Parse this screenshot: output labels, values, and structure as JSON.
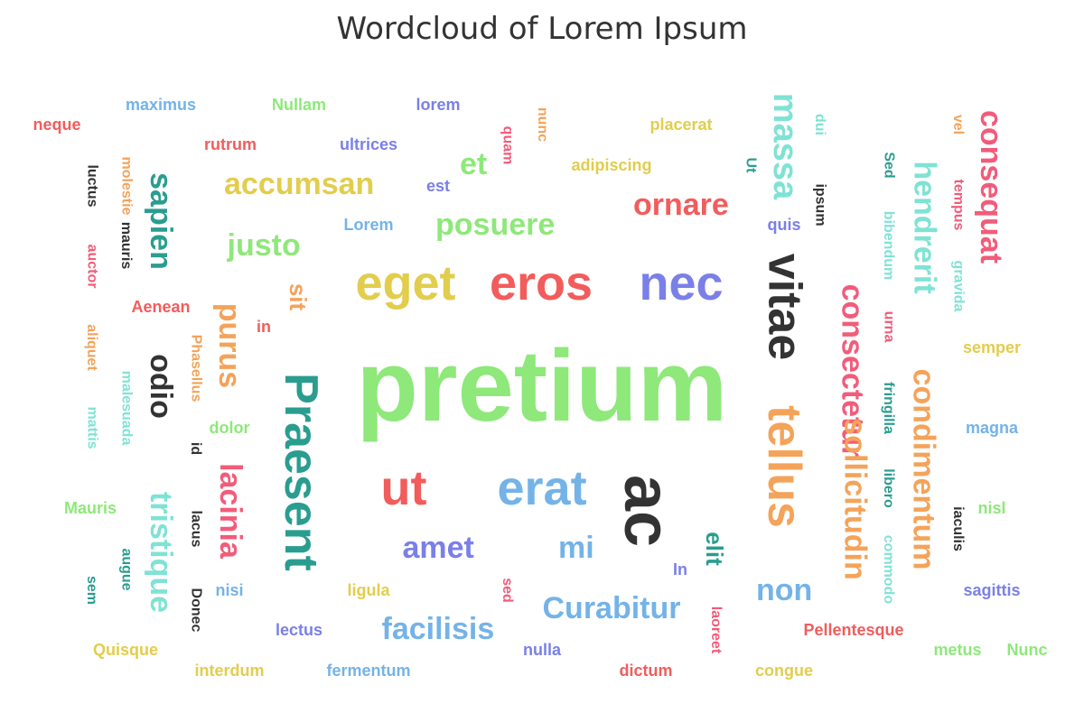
{
  "chart_data": {
    "type": "wordcloud",
    "title": "Wordcloud of Lorem Ipsum",
    "words": [
      {
        "text": "pretium",
        "weight": 100,
        "color": "#8ee87a"
      },
      {
        "text": "Praesent",
        "weight": 56,
        "color": "#2a9d8f"
      },
      {
        "text": "ac",
        "weight": 56,
        "color": "#333333"
      },
      {
        "text": "vitae",
        "weight": 52,
        "color": "#333333"
      },
      {
        "text": "tellus",
        "weight": 52,
        "color": "#f4a35a"
      },
      {
        "text": "eros",
        "weight": 52,
        "color": "#f25c5c"
      },
      {
        "text": "nec",
        "weight": 52,
        "color": "#7a80e8"
      },
      {
        "text": "eget",
        "weight": 52,
        "color": "#e2cd4d"
      },
      {
        "text": "ut",
        "weight": 52,
        "color": "#f25c5c"
      },
      {
        "text": "erat",
        "weight": 52,
        "color": "#74b3e8"
      },
      {
        "text": "massa",
        "weight": 40,
        "color": "#7fe3d4"
      },
      {
        "text": "consectetur",
        "weight": 38,
        "color": "#f25c7a"
      },
      {
        "text": "sollicitudin",
        "weight": 38,
        "color": "#f4a35a"
      },
      {
        "text": "consequat",
        "weight": 38,
        "color": "#f25c7a"
      },
      {
        "text": "hendrerit",
        "weight": 38,
        "color": "#7fe3d4"
      },
      {
        "text": "condimentum",
        "weight": 38,
        "color": "#f4a35a"
      },
      {
        "text": "odio",
        "weight": 38,
        "color": "#333333"
      },
      {
        "text": "tristique",
        "weight": 38,
        "color": "#7fe3d4"
      },
      {
        "text": "sapien",
        "weight": 38,
        "color": "#2a9d8f"
      },
      {
        "text": "lacinia",
        "weight": 38,
        "color": "#f25c7a"
      },
      {
        "text": "purus",
        "weight": 38,
        "color": "#f4a35a"
      },
      {
        "text": "ornare",
        "weight": 38,
        "color": "#f25c5c"
      },
      {
        "text": "accumsan",
        "weight": 38,
        "color": "#e2cd4d"
      },
      {
        "text": "justo",
        "weight": 38,
        "color": "#8ee87a"
      },
      {
        "text": "posuere",
        "weight": 38,
        "color": "#8ee87a"
      },
      {
        "text": "facilisis",
        "weight": 38,
        "color": "#74b3e8"
      },
      {
        "text": "Curabitur",
        "weight": 38,
        "color": "#74b3e8"
      },
      {
        "text": "non",
        "weight": 38,
        "color": "#74b3e8"
      },
      {
        "text": "amet",
        "weight": 38,
        "color": "#7a80e8"
      },
      {
        "text": "mi",
        "weight": 38,
        "color": "#74b3e8"
      },
      {
        "text": "et",
        "weight": 38,
        "color": "#8ee87a"
      },
      {
        "text": "sit",
        "weight": 38,
        "color": "#f4a35a"
      },
      {
        "text": "elit",
        "weight": 38,
        "color": "#2a9d8f"
      },
      {
        "text": "maximus",
        "weight": 20,
        "color": "#74b3e8"
      },
      {
        "text": "Nullam",
        "weight": 20,
        "color": "#8ee87a"
      },
      {
        "text": "lorem",
        "weight": 20,
        "color": "#7a80e8"
      },
      {
        "text": "neque",
        "weight": 20,
        "color": "#f25c5c"
      },
      {
        "text": "rutrum",
        "weight": 20,
        "color": "#f25c5c"
      },
      {
        "text": "ultrices",
        "weight": 20,
        "color": "#7a80e8"
      },
      {
        "text": "placerat",
        "weight": 20,
        "color": "#e2cd4d"
      },
      {
        "text": "adipiscing",
        "weight": 20,
        "color": "#e2cd4d"
      },
      {
        "text": "est",
        "weight": 20,
        "color": "#7a80e8"
      },
      {
        "text": "Lorem",
        "weight": 20,
        "color": "#74b3e8"
      },
      {
        "text": "quis",
        "weight": 20,
        "color": "#7a80e8"
      },
      {
        "text": "Aenean",
        "weight": 20,
        "color": "#f25c5c"
      },
      {
        "text": "in",
        "weight": 20,
        "color": "#f25c5c"
      },
      {
        "text": "dolor",
        "weight": 20,
        "color": "#8ee87a"
      },
      {
        "text": "semper",
        "weight": 20,
        "color": "#e2cd4d"
      },
      {
        "text": "magna",
        "weight": 20,
        "color": "#74b3e8"
      },
      {
        "text": "nisl",
        "weight": 20,
        "color": "#8ee87a"
      },
      {
        "text": "sagittis",
        "weight": 20,
        "color": "#7a80e8"
      },
      {
        "text": "Mauris",
        "weight": 20,
        "color": "#8ee87a"
      },
      {
        "text": "nisi",
        "weight": 20,
        "color": "#74b3e8"
      },
      {
        "text": "ligula",
        "weight": 20,
        "color": "#e2cd4d"
      },
      {
        "text": "lectus",
        "weight": 20,
        "color": "#7a80e8"
      },
      {
        "text": "Quisque",
        "weight": 20,
        "color": "#e2cd4d"
      },
      {
        "text": "interdum",
        "weight": 20,
        "color": "#e2cd4d"
      },
      {
        "text": "fermentum",
        "weight": 20,
        "color": "#74b3e8"
      },
      {
        "text": "nulla",
        "weight": 20,
        "color": "#7a80e8"
      },
      {
        "text": "dictum",
        "weight": 20,
        "color": "#f25c5c"
      },
      {
        "text": "congue",
        "weight": 20,
        "color": "#e2cd4d"
      },
      {
        "text": "Pellentesque",
        "weight": 20,
        "color": "#f25c5c"
      },
      {
        "text": "metus",
        "weight": 20,
        "color": "#8ee87a"
      },
      {
        "text": "Nunc",
        "weight": 20,
        "color": "#8ee87a"
      },
      {
        "text": "In",
        "weight": 20,
        "color": "#7a80e8"
      },
      {
        "text": "molestie",
        "weight": 18,
        "color": "#f4a35a"
      },
      {
        "text": "luctus",
        "weight": 18,
        "color": "#333333"
      },
      {
        "text": "mauris",
        "weight": 18,
        "color": "#333333"
      },
      {
        "text": "auctor",
        "weight": 18,
        "color": "#f25c7a"
      },
      {
        "text": "aliquet",
        "weight": 18,
        "color": "#f4a35a"
      },
      {
        "text": "malesuada",
        "weight": 18,
        "color": "#7fe3d4"
      },
      {
        "text": "mattis",
        "weight": 18,
        "color": "#7fe3d4"
      },
      {
        "text": "Phasellus",
        "weight": 18,
        "color": "#f4a35a"
      },
      {
        "text": "id",
        "weight": 18,
        "color": "#333333"
      },
      {
        "text": "augue",
        "weight": 18,
        "color": "#2a9d8f"
      },
      {
        "text": "sem",
        "weight": 18,
        "color": "#2a9d8f"
      },
      {
        "text": "lacus",
        "weight": 18,
        "color": "#333333"
      },
      {
        "text": "Donec",
        "weight": 18,
        "color": "#333333"
      },
      {
        "text": "quam",
        "weight": 18,
        "color": "#f25c7a"
      },
      {
        "text": "nunc",
        "weight": 18,
        "color": "#f4a35a"
      },
      {
        "text": "Ut",
        "weight": 18,
        "color": "#2a9d8f"
      },
      {
        "text": "dui",
        "weight": 18,
        "color": "#7fe3d4"
      },
      {
        "text": "ipsum",
        "weight": 18,
        "color": "#333333"
      },
      {
        "text": "Sed",
        "weight": 18,
        "color": "#2a9d8f"
      },
      {
        "text": "bibendum",
        "weight": 18,
        "color": "#7fe3d4"
      },
      {
        "text": "urna",
        "weight": 18,
        "color": "#f25c7a"
      },
      {
        "text": "fringilla",
        "weight": 18,
        "color": "#2a9d8f"
      },
      {
        "text": "libero",
        "weight": 18,
        "color": "#2a9d8f"
      },
      {
        "text": "commodo",
        "weight": 18,
        "color": "#7fe3d4"
      },
      {
        "text": "vel",
        "weight": 18,
        "color": "#f4a35a"
      },
      {
        "text": "tempus",
        "weight": 18,
        "color": "#f25c7a"
      },
      {
        "text": "gravida",
        "weight": 18,
        "color": "#7fe3d4"
      },
      {
        "text": "iaculis",
        "weight": 18,
        "color": "#333333"
      },
      {
        "text": "sed",
        "weight": 18,
        "color": "#f25c7a"
      },
      {
        "text": "laoreet",
        "weight": 18,
        "color": "#f25c7a"
      }
    ]
  }
}
